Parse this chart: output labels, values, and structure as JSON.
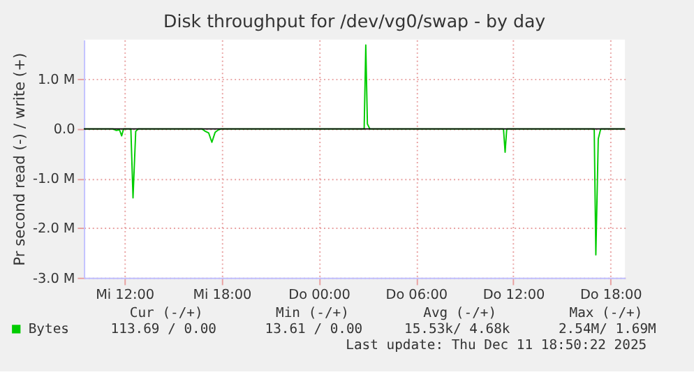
{
  "chart_data": {
    "type": "line",
    "title": "Disk throughput for /dev/vg0/swap - by day",
    "ylabel": "Pr second read (-) / write (+)",
    "x": [
      "2025-12-10T09:30",
      "2025-12-10T11:18",
      "2025-12-10T11:30",
      "2025-12-10T11:42",
      "2025-12-10T11:50",
      "2025-12-10T11:57",
      "2025-12-10T12:24",
      "2025-12-10T12:32",
      "2025-12-10T12:42",
      "2025-12-10T12:51",
      "2025-12-10T16:48",
      "2025-12-10T17:00",
      "2025-12-10T17:12",
      "2025-12-10T17:24",
      "2025-12-10T17:36",
      "2025-12-10T17:48",
      "2025-12-10T17:57",
      "2025-12-11T02:48",
      "2025-12-11T02:54",
      "2025-12-11T03:00",
      "2025-12-11T03:09",
      "2025-12-11T11:24",
      "2025-12-11T11:30",
      "2025-12-11T11:36",
      "2025-12-11T17:00",
      "2025-12-11T17:06",
      "2025-12-11T17:15",
      "2025-12-11T17:24",
      "2025-12-11T18:54"
    ],
    "series": [
      {
        "name": "Bytes",
        "color": "#00cc00",
        "values": [
          0,
          0,
          -0.03,
          -0.02,
          -0.14,
          0,
          0,
          -1.39,
          -0.05,
          0,
          0,
          -0.05,
          -0.08,
          -0.27,
          -0.07,
          -0.02,
          0,
          0,
          1.69,
          0.1,
          0,
          0,
          -0.47,
          0,
          0,
          -2.54,
          -0.2,
          0,
          0
        ]
      }
    ],
    "xlim": [
      "2025-12-10T09:30",
      "2025-12-11T18:54"
    ],
    "xticks": [
      {
        "value": "2025-12-10T12:00",
        "label": "Mi 12:00"
      },
      {
        "value": "2025-12-10T18:00",
        "label": "Mi 18:00"
      },
      {
        "value": "2025-12-11T00:00",
        "label": "Do 00:00"
      },
      {
        "value": "2025-12-11T06:00",
        "label": "Do 06:00"
      },
      {
        "value": "2025-12-11T12:00",
        "label": "Do 12:00"
      },
      {
        "value": "2025-12-11T18:00",
        "label": "Do 18:00"
      }
    ],
    "ylim": [
      -3.0,
      1.8
    ],
    "yticks": [
      {
        "value": -3,
        "label": "-3.0 M"
      },
      {
        "value": -2,
        "label": "-2.0 M"
      },
      {
        "value": -1,
        "label": "-1.0 M"
      },
      {
        "value": 0,
        "label": "0.0"
      },
      {
        "value": 1,
        "label": "1.0 M"
      }
    ],
    "ref_lines": [
      {
        "axis": "y",
        "value": 0,
        "color": "#000000"
      }
    ],
    "grid": true,
    "legend": "bottom",
    "marker": "none",
    "line_style": "solid",
    "annotations": [
      "Cur (-/+)",
      "Min (-/+)",
      "Avg (-/+)",
      "Max (-/+)",
      "113.69 /  0.00",
      "13.61 /  0.00",
      "15.53k/  4.68k",
      "2.54M/  1.69M",
      "Last update: Thu Dec 11 18:50:22 2025"
    ]
  }
}
